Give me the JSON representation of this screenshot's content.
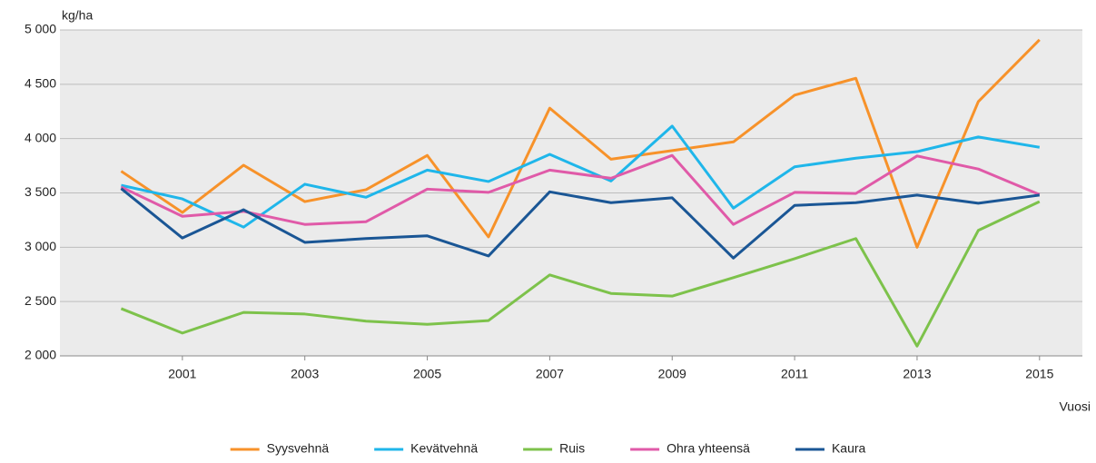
{
  "chart_data": {
    "type": "line",
    "y_label": "kg/ha",
    "x_label": "Vuosi",
    "x": [
      2000,
      2001,
      2002,
      2003,
      2004,
      2005,
      2006,
      2007,
      2008,
      2009,
      2010,
      2011,
      2012,
      2013,
      2014,
      2015
    ],
    "series": [
      {
        "name": "Syysvehnä",
        "color": "#f7922a",
        "values": [
          3700,
          3320,
          3755,
          3420,
          3530,
          3845,
          3095,
          4280,
          3810,
          3890,
          3970,
          4400,
          4555,
          3000,
          4340,
          4910
        ]
      },
      {
        "name": "Kevätvehnä",
        "color": "#1fb6ea",
        "values": [
          3570,
          3445,
          3185,
          3580,
          3460,
          3710,
          3605,
          3855,
          3610,
          4115,
          3360,
          3740,
          3820,
          3880,
          4015,
          3920
        ]
      },
      {
        "name": "Ruis",
        "color": "#7dc24b",
        "values": [
          2435,
          2210,
          2400,
          2385,
          2320,
          2290,
          2325,
          2745,
          2575,
          2550,
          2720,
          2895,
          3080,
          2090,
          3155,
          3420
        ]
      },
      {
        "name": "Ohra yhteensä",
        "color": "#e05aa8",
        "values": [
          3555,
          3285,
          3330,
          3210,
          3235,
          3535,
          3505,
          3710,
          3635,
          3845,
          3210,
          3505,
          3495,
          3840,
          3720,
          3485
        ]
      },
      {
        "name": "Kaura",
        "color": "#1a5695",
        "values": [
          3540,
          3085,
          3345,
          3045,
          3080,
          3105,
          2920,
          3510,
          3410,
          3455,
          2900,
          3385,
          3410,
          3480,
          3405,
          3480
        ]
      }
    ],
    "xlim": [
      1999,
      2015.7
    ],
    "xticks": [
      2001,
      2003,
      2005,
      2007,
      2009,
      2011,
      2013,
      2015
    ],
    "ylim": [
      2000,
      5000
    ],
    "yticks": [
      {
        "value": 2000,
        "label": "2 000"
      },
      {
        "value": 2500,
        "label": "2 500"
      },
      {
        "value": 3000,
        "label": "3 000"
      },
      {
        "value": 3500,
        "label": "3 500"
      },
      {
        "value": 4000,
        "label": "4 000"
      },
      {
        "value": 4500,
        "label": "4 500"
      },
      {
        "value": 5000,
        "label": "5 000"
      }
    ],
    "grid": true,
    "legend": "bottom",
    "plot_background": "#ebebeb"
  }
}
